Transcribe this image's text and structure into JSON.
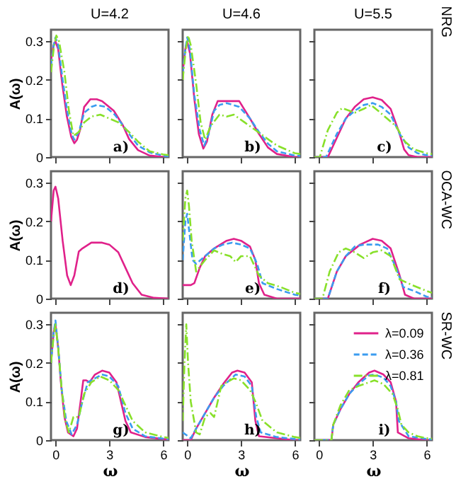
{
  "chart_data": [
    {
      "type": "line",
      "title": "U=4.2",
      "ylabel": "A(ω)",
      "xlim": [
        -0.25,
        6.3
      ],
      "ylim": [
        0,
        0.33
      ],
      "xticks": [
        0,
        3,
        6
      ],
      "yticks": [
        0,
        0.1,
        0.2,
        0.3
      ],
      "tick_labels": "y",
      "annotations": [
        "a)"
      ],
      "series": [
        {
          "color": "#e0218a",
          "line_style": "solid",
          "x": [
            -0.25,
            -0.1,
            0,
            0.15,
            0.375,
            0.63,
            0.875,
            1.05,
            1.2,
            1.37,
            1.6,
            1.95,
            2.3,
            2.6,
            3.25,
            3.75,
            4.1,
            4.6,
            5.25,
            6.1,
            6.3
          ],
          "values": [
            0.25,
            0.29,
            0.3,
            0.28,
            0.19,
            0.107,
            0.053,
            0.036,
            0.045,
            0.07,
            0.13,
            0.15,
            0.15,
            0.145,
            0.12,
            0.083,
            0.047,
            0.018,
            0.004,
            0.0,
            0.0
          ]
        },
        {
          "color": "#3a9cf0",
          "line_style": "dashed",
          "x": [
            -0.25,
            -0.1,
            0,
            0.15,
            0.4,
            0.65,
            0.9,
            1.05,
            1.3,
            1.6,
            2.0,
            2.3,
            2.8,
            3.3,
            3.8,
            4.1,
            4.6,
            5.25,
            6.1,
            6.3
          ],
          "values": [
            0.24,
            0.29,
            0.31,
            0.29,
            0.2,
            0.12,
            0.06,
            0.045,
            0.065,
            0.115,
            0.13,
            0.135,
            0.13,
            0.11,
            0.08,
            0.06,
            0.03,
            0.012,
            0.003,
            0.002
          ]
        },
        {
          "color": "#88e02a",
          "line_style": "dashdot",
          "x": [
            -0.25,
            -0.1,
            0.05,
            0.2,
            0.5,
            0.75,
            1.0,
            1.3,
            1.6,
            2.0,
            2.5,
            3.0,
            3.5,
            4.1,
            4.6,
            5.25,
            6.0,
            6.3
          ],
          "values": [
            0.22,
            0.28,
            0.315,
            0.3,
            0.22,
            0.12,
            0.055,
            0.065,
            0.09,
            0.105,
            0.11,
            0.1,
            0.09,
            0.065,
            0.04,
            0.015,
            0.007,
            0.005
          ]
        }
      ]
    },
    {
      "type": "line",
      "title": "U=4.6",
      "xlim": [
        -0.25,
        6.3
      ],
      "ylim": [
        0,
        0.33
      ],
      "xticks": [
        0,
        3,
        6
      ],
      "yticks": [
        0,
        0.1,
        0.2,
        0.3
      ],
      "tick_labels": false,
      "annotations": [
        "b)"
      ],
      "series": [
        {
          "color": "#e0218a",
          "line_style": "solid",
          "x": [
            -0.25,
            -0.1,
            0,
            0.15,
            0.4,
            0.65,
            0.9,
            1.1,
            1.4,
            1.7,
            2.3,
            2.9,
            3.5,
            4.0,
            4.5,
            5.0,
            6.0,
            6.3
          ],
          "values": [
            0.22,
            0.28,
            0.3,
            0.27,
            0.15,
            0.06,
            0.022,
            0.04,
            0.11,
            0.145,
            0.145,
            0.145,
            0.1,
            0.06,
            0.025,
            0.008,
            0.0,
            0.0
          ]
        },
        {
          "color": "#3a9cf0",
          "line_style": "dashed",
          "x": [
            -0.25,
            -0.1,
            0,
            0.15,
            0.4,
            0.7,
            0.95,
            1.2,
            1.5,
            1.8,
            2.2,
            2.9,
            3.5,
            4.0,
            4.5,
            5.0,
            6.0,
            6.3
          ],
          "values": [
            0.22,
            0.28,
            0.31,
            0.28,
            0.16,
            0.07,
            0.03,
            0.06,
            0.12,
            0.135,
            0.14,
            0.13,
            0.1,
            0.065,
            0.035,
            0.015,
            0.004,
            0.003
          ]
        },
        {
          "color": "#88e02a",
          "line_style": "dashdot",
          "x": [
            -0.25,
            -0.1,
            0.05,
            0.2,
            0.5,
            0.75,
            1.0,
            1.3,
            1.8,
            2.2,
            2.6,
            3.2,
            3.8,
            4.4,
            5.0,
            6.0,
            6.3
          ],
          "values": [
            0.2,
            0.27,
            0.315,
            0.29,
            0.19,
            0.09,
            0.045,
            0.08,
            0.11,
            0.105,
            0.11,
            0.09,
            0.07,
            0.05,
            0.03,
            0.01,
            0.008
          ]
        }
      ]
    },
    {
      "type": "line",
      "title": "U=5.5",
      "y2label": "NRG",
      "xlim": [
        -0.25,
        6.3
      ],
      "ylim": [
        0,
        0.33
      ],
      "xticks": [
        0,
        3,
        6
      ],
      "yticks": [
        0,
        0.1,
        0.2,
        0.3
      ],
      "tick_labels": false,
      "annotations": [
        "c)"
      ],
      "series": [
        {
          "color": "#e0218a",
          "line_style": "solid",
          "x": [
            -0.25,
            0.5,
            1.0,
            1.5,
            2.0,
            2.5,
            3.0,
            3.5,
            4.0,
            4.5,
            4.75,
            5.0,
            5.5,
            6.3
          ],
          "values": [
            0,
            0,
            0.05,
            0.1,
            0.13,
            0.15,
            0.155,
            0.148,
            0.125,
            0.06,
            0.02,
            0.005,
            0,
            0
          ]
        },
        {
          "color": "#3a9cf0",
          "line_style": "dashed",
          "x": [
            -0.25,
            0.4,
            1.0,
            1.5,
            2.0,
            2.5,
            3.0,
            3.5,
            4.0,
            4.5,
            5.0,
            5.5,
            6.0,
            6.3
          ],
          "values": [
            0,
            0,
            0.06,
            0.1,
            0.12,
            0.135,
            0.14,
            0.13,
            0.11,
            0.06,
            0.025,
            0.01,
            0.005,
            0.004
          ]
        },
        {
          "color": "#88e02a",
          "line_style": "dashdot",
          "x": [
            -0.25,
            0.05,
            0.5,
            1.0,
            1.3,
            1.7,
            2.0,
            2.5,
            2.9,
            3.3,
            3.8,
            4.3,
            4.8,
            5.3,
            6.0,
            6.3
          ],
          "values": [
            0,
            0,
            0.07,
            0.115,
            0.127,
            0.12,
            0.115,
            0.125,
            0.135,
            0.12,
            0.1,
            0.08,
            0.04,
            0.02,
            0.01,
            0.008
          ]
        }
      ]
    },
    {
      "type": "line",
      "ylabel": "A(ω)",
      "xlim": [
        -0.25,
        6.3
      ],
      "ylim": [
        0,
        0.33
      ],
      "xticks": [
        0,
        3,
        6
      ],
      "yticks": [
        0,
        0.1,
        0.2,
        0.3
      ],
      "tick_labels": "y",
      "annotations": [
        "d)"
      ],
      "series": [
        {
          "color": "#e0218a",
          "line_style": "solid",
          "x": [
            -0.25,
            -0.1,
            0,
            0.15,
            0.4,
            0.65,
            0.85,
            1.05,
            1.3,
            1.5,
            2.0,
            2.6,
            3.0,
            3.5,
            3.9,
            4.3,
            4.8,
            5.5,
            6.3
          ],
          "values": [
            0.2,
            0.28,
            0.29,
            0.26,
            0.15,
            0.06,
            0.035,
            0.06,
            0.122,
            0.13,
            0.145,
            0.145,
            0.14,
            0.12,
            0.08,
            0.04,
            0.01,
            0.002,
            0
          ]
        }
      ]
    },
    {
      "type": "line",
      "xlim": [
        -0.25,
        6.3
      ],
      "ylim": [
        0,
        0.33
      ],
      "xticks": [
        0,
        3,
        6
      ],
      "yticks": [
        0,
        0.1,
        0.2,
        0.3
      ],
      "tick_labels": false,
      "annotations": [
        "e)"
      ],
      "series": [
        {
          "color": "#e0218a",
          "line_style": "solid",
          "x": [
            -0.25,
            0.2,
            0.4,
            0.7,
            1.0,
            1.5,
            2.2,
            2.6,
            3.0,
            3.5,
            3.8,
            4.0,
            4.3,
            5.0,
            6.3
          ],
          "values": [
            0.035,
            0.035,
            0.04,
            0.08,
            0.11,
            0.13,
            0.15,
            0.155,
            0.15,
            0.135,
            0.1,
            0.04,
            0.01,
            0,
            0
          ]
        },
        {
          "color": "#3a9cf0",
          "line_style": "dashed",
          "x": [
            -0.25,
            -0.1,
            0,
            0.15,
            0.3,
            0.5,
            1.0,
            1.5,
            2.0,
            2.5,
            3.0,
            3.5,
            3.9,
            4.2,
            5.0,
            6.0,
            6.3
          ],
          "values": [
            0.1,
            0.2,
            0.22,
            0.16,
            0.1,
            0.09,
            0.11,
            0.13,
            0.14,
            0.145,
            0.14,
            0.13,
            0.09,
            0.04,
            0.025,
            0.01,
            0.008
          ]
        },
        {
          "color": "#88e02a",
          "line_style": "dashdot",
          "x": [
            -0.25,
            -0.1,
            0,
            0.1,
            0.25,
            0.5,
            1.0,
            1.5,
            2.0,
            2.4,
            2.7,
            3.0,
            3.5,
            4.0,
            4.5,
            5.2,
            6.0,
            6.3
          ],
          "values": [
            0.15,
            0.26,
            0.28,
            0.24,
            0.15,
            0.07,
            0.1,
            0.125,
            0.115,
            0.11,
            0.095,
            0.11,
            0.11,
            0.06,
            0.04,
            0.03,
            0.015,
            0.012
          ]
        }
      ]
    },
    {
      "type": "line",
      "y2label": "OCA-WC",
      "xlim": [
        -0.25,
        6.3
      ],
      "ylim": [
        0,
        0.33
      ],
      "xticks": [
        0,
        3,
        6
      ],
      "yticks": [
        0,
        0.1,
        0.2,
        0.3
      ],
      "tick_labels": false,
      "annotations": [
        "f)"
      ],
      "series": [
        {
          "color": "#e0218a",
          "line_style": "solid",
          "x": [
            -0.25,
            0.5,
            1.0,
            1.5,
            2.3,
            3.0,
            3.5,
            4.0,
            4.5,
            4.8,
            5.3,
            6.3
          ],
          "values": [
            0,
            0,
            0.07,
            0.11,
            0.14,
            0.155,
            0.15,
            0.13,
            0.06,
            0.01,
            0,
            0
          ]
        },
        {
          "color": "#3a9cf0",
          "line_style": "dashed",
          "x": [
            -0.25,
            0.5,
            1.0,
            1.5,
            2.0,
            2.5,
            3.3,
            3.8,
            4.3,
            4.7,
            5.3,
            6.0,
            6.3
          ],
          "values": [
            0,
            0,
            0.07,
            0.11,
            0.135,
            0.14,
            0.14,
            0.13,
            0.08,
            0.03,
            0.02,
            0.005,
            0.004
          ]
        },
        {
          "color": "#88e02a",
          "line_style": "dashdot",
          "x": [
            -0.25,
            0.2,
            0.6,
            1.1,
            1.5,
            2.0,
            2.5,
            3.0,
            3.5,
            4.0,
            4.5,
            5.2,
            6.0,
            6.3
          ],
          "values": [
            0,
            0,
            0.07,
            0.12,
            0.13,
            0.12,
            0.105,
            0.12,
            0.125,
            0.11,
            0.05,
            0.035,
            0.02,
            0.015
          ]
        }
      ]
    },
    {
      "type": "line",
      "ylabel": "A(ω)",
      "xlabel": "ω",
      "xlim": [
        -0.25,
        6.3
      ],
      "ylim": [
        0,
        0.33
      ],
      "xticks": [
        0,
        3,
        6
      ],
      "yticks": [
        0,
        0.1,
        0.2,
        0.3
      ],
      "annotations": [
        "g)"
      ],
      "series": [
        {
          "color": "#e0218a",
          "line_style": "solid",
          "x": [
            -0.25,
            -0.1,
            0,
            0.15,
            0.3,
            0.5,
            0.7,
            1.0,
            1.2,
            1.4,
            1.55,
            1.7,
            1.9,
            2.2,
            2.6,
            3.0,
            3.4,
            3.7,
            3.9,
            4.2,
            5.0,
            6.0,
            6.3
          ],
          "values": [
            0.2,
            0.28,
            0.3,
            0.24,
            0.15,
            0.06,
            0.02,
            0.01,
            0.03,
            0.1,
            0.155,
            0.155,
            0.15,
            0.17,
            0.18,
            0.175,
            0.15,
            0.09,
            0.05,
            0.02,
            0.008,
            0.003,
            0.002
          ]
        },
        {
          "color": "#3a9cf0",
          "line_style": "dashed",
          "x": [
            -0.25,
            -0.1,
            0,
            0.15,
            0.35,
            0.6,
            0.9,
            1.2,
            1.5,
            1.8,
            2.2,
            2.6,
            3.0,
            3.5,
            3.9,
            4.3,
            5.0,
            6.0,
            6.3
          ],
          "values": [
            0.2,
            0.28,
            0.31,
            0.24,
            0.13,
            0.05,
            0.015,
            0.04,
            0.1,
            0.15,
            0.16,
            0.17,
            0.165,
            0.14,
            0.07,
            0.03,
            0.01,
            0.004,
            0.003
          ]
        },
        {
          "color": "#88e02a",
          "line_style": "dashdot",
          "x": [
            -0.25,
            -0.1,
            0,
            0.15,
            0.35,
            0.55,
            0.75,
            1.0,
            1.3,
            1.6,
            2.0,
            2.5,
            3.0,
            3.5,
            3.8,
            4.3,
            5.0,
            6.0,
            6.3
          ],
          "values": [
            0.2,
            0.27,
            0.3,
            0.24,
            0.13,
            0.05,
            0.02,
            0.06,
            0.06,
            0.12,
            0.15,
            0.165,
            0.155,
            0.13,
            0.1,
            0.05,
            0.02,
            0.008,
            0.006
          ]
        }
      ]
    },
    {
      "type": "line",
      "xlabel": "ω",
      "xlim": [
        -0.25,
        6.3
      ],
      "ylim": [
        0,
        0.33
      ],
      "xticks": [
        0,
        3,
        6
      ],
      "yticks": [
        0,
        0.1,
        0.2,
        0.3
      ],
      "tick_labels": "x",
      "annotations": [
        "h)"
      ],
      "series": [
        {
          "color": "#e0218a",
          "line_style": "solid",
          "x": [
            -0.25,
            0.2,
            0.5,
            1.0,
            1.5,
            2.0,
            2.5,
            2.8,
            3.2,
            3.6,
            3.8,
            4.0,
            5.0,
            6.0,
            6.3
          ],
          "values": [
            0,
            0,
            0.03,
            0.07,
            0.11,
            0.145,
            0.175,
            0.18,
            0.175,
            0.15,
            0.05,
            0.01,
            0.005,
            0,
            0
          ]
        },
        {
          "color": "#3a9cf0",
          "line_style": "dashed",
          "x": [
            -0.25,
            0.2,
            0.5,
            1.0,
            1.5,
            2.0,
            2.7,
            3.2,
            3.6,
            3.85,
            4.1,
            5.0,
            6.0,
            6.3
          ],
          "values": [
            0.02,
            0.005,
            0.03,
            0.07,
            0.11,
            0.14,
            0.17,
            0.165,
            0.14,
            0.06,
            0.02,
            0.008,
            0.003,
            0.002
          ]
        },
        {
          "color": "#88e02a",
          "line_style": "dashdot",
          "x": [
            -0.25,
            -0.15,
            -0.05,
            0.05,
            0.2,
            0.5,
            0.7,
            1.0,
            1.3,
            1.5,
            1.7,
            1.9,
            2.2,
            2.6,
            3.0,
            3.5,
            3.8,
            4.2,
            5.0,
            6.0,
            6.3
          ],
          "values": [
            0.05,
            0.2,
            0.3,
            0.2,
            0.1,
            0.02,
            0.015,
            0.06,
            0.07,
            0.06,
            0.1,
            0.14,
            0.15,
            0.16,
            0.155,
            0.13,
            0.1,
            0.05,
            0.02,
            0.008,
            0.006
          ]
        }
      ]
    },
    {
      "type": "line",
      "xlabel": "ω",
      "y2label": "SR-WC",
      "xlim": [
        -0.25,
        6.3
      ],
      "ylim": [
        0,
        0.33
      ],
      "xticks": [
        0,
        3,
        6
      ],
      "yticks": [
        0,
        0.1,
        0.2,
        0.3
      ],
      "tick_labels": "x",
      "legend": "top right",
      "annotations": [
        "i)"
      ],
      "series": [
        {
          "name": "λ=0.09",
          "color": "#e0218a",
          "line_style": "solid",
          "x": [
            -0.25,
            0.7,
            0.8,
            1.2,
            1.7,
            2.2,
            2.8,
            3.1,
            3.6,
            4.0,
            4.3,
            4.4,
            5.0,
            6.0,
            6.3
          ],
          "values": [
            0,
            0,
            0.04,
            0.08,
            0.12,
            0.15,
            0.175,
            0.18,
            0.17,
            0.15,
            0.1,
            0.02,
            0.005,
            0,
            0
          ]
        },
        {
          "name": "λ=0.36",
          "color": "#3a9cf0",
          "line_style": "dashed",
          "x": [
            -0.25,
            0.7,
            0.8,
            1.2,
            1.7,
            2.2,
            2.8,
            3.1,
            3.6,
            4.0,
            4.3,
            4.45,
            5.0,
            6.0,
            6.3
          ],
          "values": [
            0,
            0,
            0.04,
            0.08,
            0.12,
            0.145,
            0.168,
            0.17,
            0.162,
            0.14,
            0.1,
            0.05,
            0.01,
            0.003,
            0.002
          ]
        },
        {
          "name": "λ=0.81",
          "color": "#88e02a",
          "line_style": "dashdot",
          "x": [
            -0.25,
            0.7,
            0.8,
            1.2,
            1.7,
            2.2,
            2.8,
            3.1,
            3.6,
            4.1,
            4.4,
            4.6,
            5.0,
            5.5,
            6.0,
            6.3
          ],
          "values": [
            0,
            0,
            0.04,
            0.09,
            0.13,
            0.14,
            0.15,
            0.155,
            0.145,
            0.12,
            0.08,
            0.04,
            0.02,
            0.01,
            0.005,
            0.004
          ]
        }
      ]
    }
  ]
}
